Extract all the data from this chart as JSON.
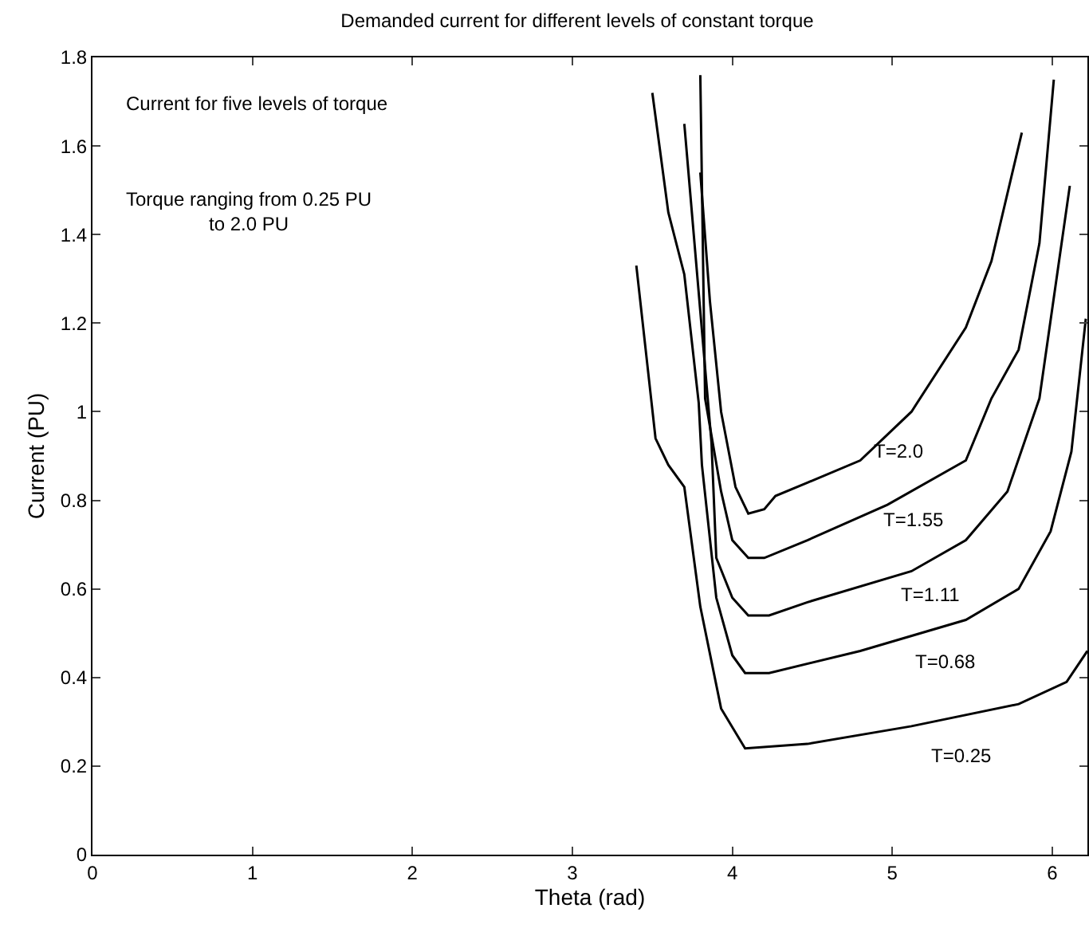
{
  "chart_data": {
    "type": "line",
    "title": "Demanded current for different levels of constant torque",
    "xlabel": "Theta (rad)",
    "ylabel": "Current (PU)",
    "xlim": [
      0,
      6.22
    ],
    "ylim": [
      0,
      1.8
    ],
    "xticks": [
      0,
      1,
      2,
      3,
      4,
      5,
      6
    ],
    "yticks": [
      0,
      0.2,
      0.4,
      0.6,
      0.8,
      1,
      1.2,
      1.4,
      1.6,
      1.8
    ],
    "grid": false,
    "legend": false,
    "marker": "none",
    "line_style": "solid",
    "series": [
      {
        "name": "T=0.25",
        "color": "#000000",
        "x": [
          3.4,
          3.52,
          3.6,
          3.7,
          3.8,
          3.93,
          4.08,
          4.47,
          5.12,
          5.79,
          6.09,
          6.22
        ],
        "values": [
          1.33,
          0.94,
          0.88,
          0.83,
          0.56,
          0.33,
          0.24,
          0.25,
          0.29,
          0.34,
          0.39,
          0.46
        ]
      },
      {
        "name": "T=0.68",
        "color": "#000000",
        "x": [
          3.5,
          3.6,
          3.7,
          3.79,
          3.81,
          3.9,
          4.0,
          4.08,
          4.23,
          4.8,
          5.46,
          5.79,
          5.99,
          6.12,
          6.21
        ],
        "values": [
          1.72,
          1.45,
          1.31,
          1.02,
          0.88,
          0.58,
          0.45,
          0.41,
          0.41,
          0.46,
          0.53,
          0.6,
          0.73,
          0.91,
          1.21
        ]
      },
      {
        "name": "T=1.11",
        "color": "#000000",
        "x": [
          3.7,
          3.87,
          3.9,
          4.0,
          4.1,
          4.23,
          4.47,
          5.12,
          5.46,
          5.72,
          5.92,
          6.11
        ],
        "values": [
          1.65,
          0.93,
          0.67,
          0.58,
          0.54,
          0.54,
          0.57,
          0.64,
          0.71,
          0.82,
          1.03,
          1.51
        ]
      },
      {
        "name": "T=1.55",
        "color": "#000000",
        "x": [
          3.8,
          3.83,
          3.93,
          4.0,
          4.1,
          4.2,
          4.47,
          4.97,
          5.46,
          5.62,
          5.79,
          5.92,
          6.01
        ],
        "values": [
          1.76,
          1.03,
          0.82,
          0.71,
          0.67,
          0.67,
          0.71,
          0.79,
          0.89,
          1.03,
          1.14,
          1.38,
          1.75
        ]
      },
      {
        "name": "T=2.0",
        "color": "#000000",
        "x": [
          3.8,
          3.86,
          3.93,
          4.02,
          4.1,
          4.2,
          4.27,
          4.47,
          4.8,
          5.12,
          5.46,
          5.62,
          5.81
        ],
        "values": [
          1.54,
          1.25,
          1.0,
          0.83,
          0.77,
          0.78,
          0.81,
          0.84,
          0.89,
          1.0,
          1.19,
          1.34,
          1.63
        ]
      }
    ],
    "annotations": [
      "Current for five levels of torque",
      "Torque ranging from 0.25 PU\nto 2.0 PU"
    ]
  }
}
